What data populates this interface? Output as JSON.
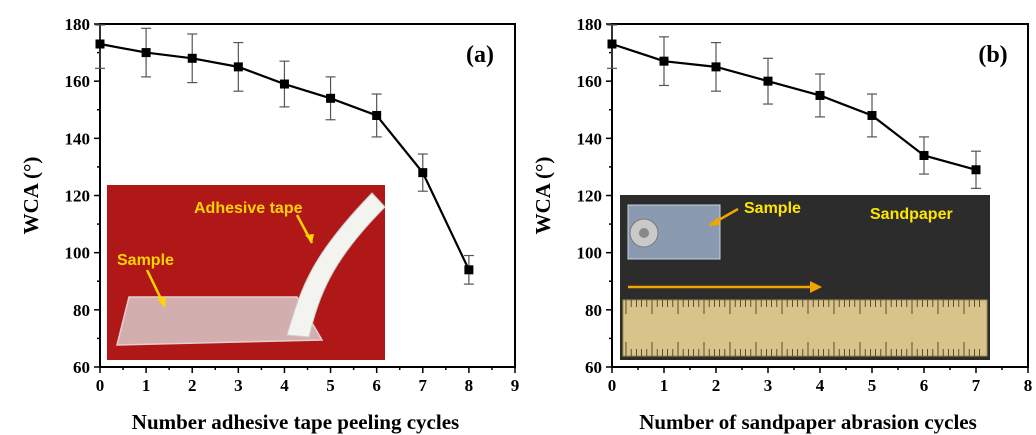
{
  "chart_data": [
    {
      "type": "line",
      "panel_label": "(a)",
      "xlabel": "Number adhesive tape peeling cycles",
      "ylabel": "WCA (°)",
      "xlim": [
        0,
        9
      ],
      "ylim": [
        60,
        180
      ],
      "x_ticks": [
        0,
        1,
        2,
        3,
        4,
        5,
        6,
        7,
        8,
        9
      ],
      "y_ticks": [
        60,
        80,
        100,
        120,
        140,
        160,
        180
      ],
      "x": [
        0,
        1,
        2,
        3,
        4,
        5,
        6,
        7,
        8
      ],
      "values": [
        173,
        170,
        168,
        165,
        159,
        154,
        148,
        128,
        94
      ],
      "error": [
        8.5,
        8.5,
        8.5,
        8.5,
        8,
        7.5,
        7.5,
        6.5,
        5
      ],
      "inset": {
        "labels": [
          "Adhesive tape",
          "Sample"
        ],
        "label_color": "#ffd400",
        "background_color": "#b01818"
      }
    },
    {
      "type": "line",
      "panel_label": "(b)",
      "xlabel": "Number of sandpaper abrasion cycles",
      "ylabel": "WCA (°)",
      "xlim": [
        0,
        8
      ],
      "ylim": [
        60,
        180
      ],
      "x_ticks": [
        0,
        1,
        2,
        3,
        4,
        5,
        6,
        7,
        8
      ],
      "y_ticks": [
        60,
        80,
        100,
        120,
        140,
        160,
        180
      ],
      "x": [
        0,
        1,
        2,
        3,
        4,
        5,
        6,
        7
      ],
      "values": [
        173,
        167,
        165,
        160,
        155,
        148,
        134,
        129
      ],
      "error": [
        8.5,
        8.5,
        8.5,
        8,
        7.5,
        7.5,
        6.5,
        6.5
      ],
      "inset": {
        "labels": [
          "Sample",
          "Sandpaper"
        ],
        "label_color": "#ffe600",
        "background_color": "#2c2c2c"
      }
    }
  ]
}
